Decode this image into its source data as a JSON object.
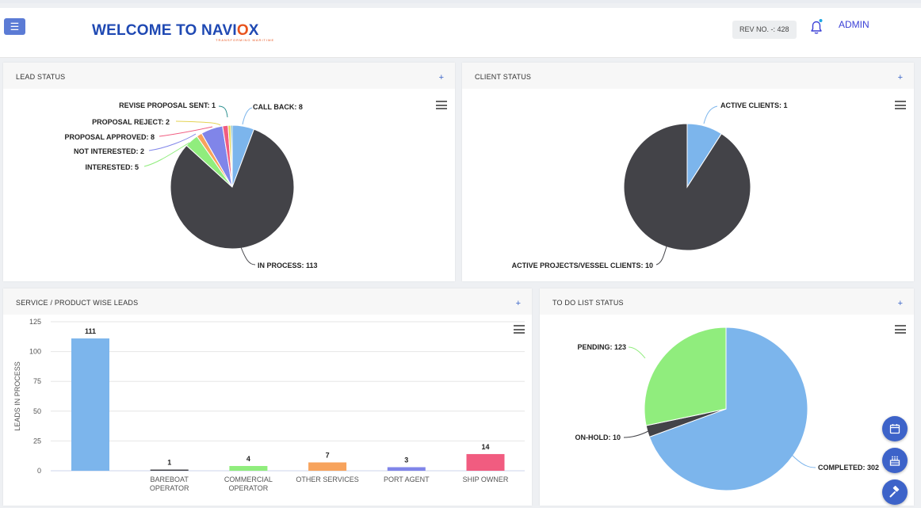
{
  "header": {
    "welcome_prefix": "WELCOME TO ",
    "brand_a": "NAVI",
    "brand_o": "O",
    "brand_b": "X",
    "tagline": "TRANSFORMING MARITIME",
    "rev_label": "REV NO. -: 428",
    "admin_label": "ADMIN"
  },
  "panels": {
    "lead": {
      "title": "LEAD STATUS",
      "plus": "+"
    },
    "client": {
      "title": "CLIENT STATUS",
      "plus": "+"
    },
    "service": {
      "title": "SERVICE / PRODUCT WISE LEADS",
      "plus": "+"
    },
    "todo": {
      "title": "TO DO LIST STATUS",
      "plus": "+"
    }
  },
  "colors": {
    "brand": "#1f49b3",
    "accent": "#e8531d",
    "fab": "#3d63c9",
    "blue": "#7cb5ec",
    "dark": "#434348",
    "green": "#90ed7d",
    "orange": "#f7a35c",
    "purple": "#8085e9",
    "pink": "#f15c80",
    "yellow": "#e4d354",
    "teal": "#2b908f"
  },
  "chart_data": [
    {
      "type": "pie",
      "title": "LEAD STATUS",
      "slices": [
        {
          "label": "CALL BACK",
          "value": 8,
          "color": "#7cb5ec"
        },
        {
          "label": "IN PROCESS",
          "value": 113,
          "color": "#434348"
        },
        {
          "label": "INTERESTED",
          "value": 5,
          "color": "#90ed7d"
        },
        {
          "label": "NOT INTERESTED",
          "value": 2,
          "color": "#f7a35c"
        },
        {
          "label": "PROPOSAL APPROVED",
          "value": 8,
          "color": "#8085e9"
        },
        {
          "label": "PROPOSAL REJECT",
          "value": 2,
          "color": "#f15c80"
        },
        {
          "label": "REVISE PROPOSAL SENT",
          "value": 1,
          "color": "#e4d354"
        },
        {
          "label": "",
          "value": 0.5,
          "color": "#2b908f"
        }
      ],
      "display_labels": [
        "REVISE PROPOSAL SENT: 1",
        "CALL BACK: 8",
        "PROPOSAL REJECT: 2",
        "PROPOSAL APPROVED: 8",
        "NOT INTERESTED: 2",
        "INTERESTED: 5",
        "IN PROCESS: 113"
      ]
    },
    {
      "type": "pie",
      "title": "CLIENT STATUS",
      "slices": [
        {
          "label": "ACTIVE CLIENTS",
          "value": 1,
          "color": "#7cb5ec"
        },
        {
          "label": "ACTIVE PROJECTS/VESSEL CLIENTS",
          "value": 10,
          "color": "#434348"
        }
      ],
      "display_labels": [
        "ACTIVE CLIENTS: 1",
        "ACTIVE PROJECTS/VESSEL CLIENTS: 10"
      ]
    },
    {
      "type": "bar",
      "title": "SERVICE / PRODUCT WISE LEADS",
      "categories": [
        "",
        "BAREBOAT OPERATOR",
        "COMMERCIAL OPERATOR",
        "OTHER SERVICES",
        "PORT AGENT",
        "SHIP OWNER"
      ],
      "category_lines": [
        [
          ""
        ],
        [
          "BAREBOAT",
          "OPERATOR"
        ],
        [
          "COMMERCIAL",
          "OPERATOR"
        ],
        [
          "OTHER SERVICES"
        ],
        [
          "PORT AGENT"
        ],
        [
          "SHIP OWNER"
        ]
      ],
      "values": [
        111,
        1,
        4,
        7,
        3,
        14
      ],
      "value_labels": [
        "111",
        "1",
        "4",
        "7",
        "3",
        "14"
      ],
      "colors": [
        "#7cb5ec",
        "#434348",
        "#90ed7d",
        "#f7a35c",
        "#8085e9",
        "#f15c80"
      ],
      "ylabel": "LEADS IN PROCESS",
      "ylim": [
        0,
        125
      ],
      "yticks": [
        0,
        25,
        50,
        75,
        100,
        125
      ],
      "ytick_labels": [
        "0",
        "25",
        "50",
        "75",
        "100",
        "125"
      ]
    },
    {
      "type": "pie",
      "title": "TO DO LIST STATUS",
      "slices": [
        {
          "label": "COMPLETED",
          "value": 302,
          "color": "#7cb5ec"
        },
        {
          "label": "ON-HOLD",
          "value": 10,
          "color": "#434348"
        },
        {
          "label": "PENDING",
          "value": 123,
          "color": "#90ed7d"
        }
      ],
      "display_labels": [
        "PENDING: 123",
        "ON-HOLD: 10",
        "COMPLETED: 302"
      ]
    }
  ]
}
